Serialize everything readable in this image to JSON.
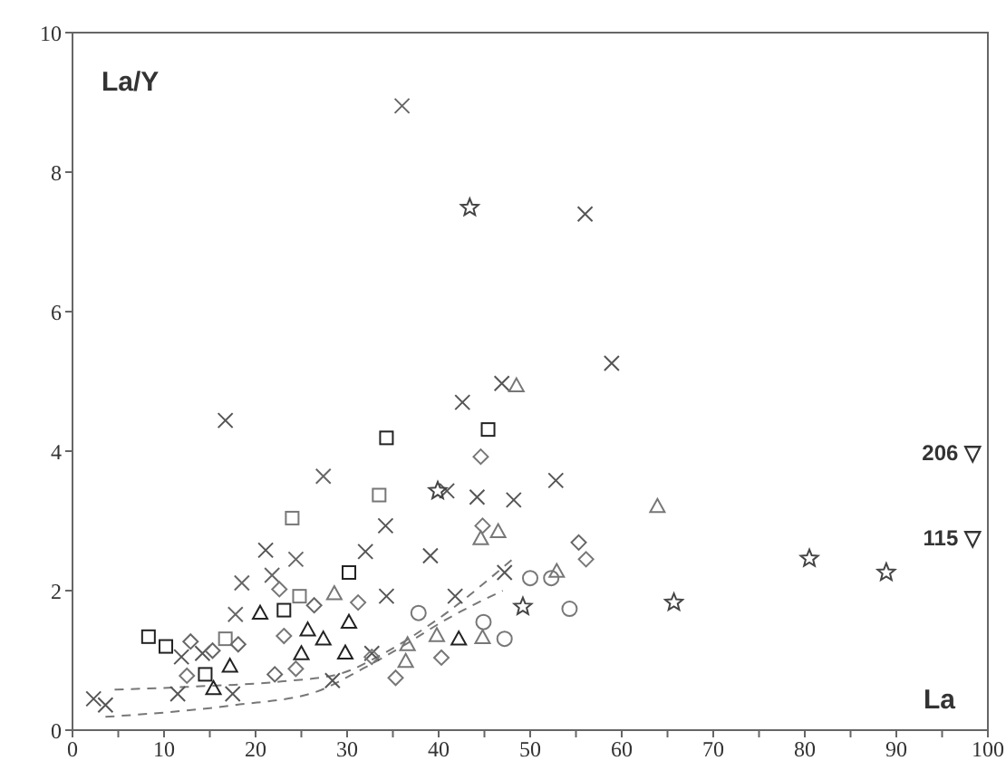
{
  "chart_data": {
    "type": "scatter",
    "xlabel": "La",
    "ylabel": "La/Y",
    "xlim": [
      0,
      100
    ],
    "ylim": [
      0,
      10
    ],
    "xticks": [
      0,
      {
        "value": 5,
        "label": null
      },
      10,
      {
        "value": 15,
        "label": null
      },
      20,
      {
        "value": 25,
        "label": null
      },
      30,
      {
        "value": 35,
        "label": null
      },
      40,
      {
        "value": 45,
        "label": null
      },
      50,
      {
        "value": 55,
        "label": null
      },
      60,
      {
        "value": 65,
        "label": null
      },
      70,
      {
        "value": 75,
        "label": null
      },
      80,
      {
        "value": 85,
        "label": null
      },
      90,
      {
        "value": 95,
        "label": null
      },
      100
    ],
    "yticks": [
      0,
      2,
      4,
      6,
      8,
      10
    ],
    "grid": false,
    "legend": false,
    "series": [
      {
        "marker": "cross",
        "color": "#555555",
        "x": [
          16.7,
          21.1,
          32.0,
          11.9,
          14.2,
          11.5,
          17.5,
          28.4,
          2.3,
          3.6,
          32.7,
          42.6,
          40.9,
          44.2,
          48.2,
          52.8,
          34.2,
          39.1,
          47.2,
          34.3,
          41.8,
          56.0,
          58.9,
          46.9
        ],
        "values": [
          4.44,
          2.58,
          2.56,
          1.05,
          1.1,
          0.52,
          0.52,
          0.71,
          0.45,
          0.36,
          1.1,
          4.7,
          3.43,
          3.34,
          3.3,
          3.58,
          2.93,
          2.5,
          2.26,
          1.92,
          1.92,
          7.4,
          5.26,
          4.97
        ]
      },
      {
        "marker": "cross",
        "color": "#666666",
        "x": [
          18.5,
          21.8,
          17.8,
          27.4,
          24.4,
          36.0
        ],
        "values": [
          2.11,
          2.22,
          1.66,
          3.64,
          2.45,
          8.95
        ]
      },
      {
        "marker": "square",
        "color": "#222222",
        "x": [
          30.2,
          23.1,
          8.3,
          10.2,
          14.5,
          34.3,
          45.4
        ],
        "values": [
          2.26,
          1.72,
          1.34,
          1.2,
          0.8,
          4.19,
          4.31
        ]
      },
      {
        "marker": "square",
        "color": "#777777",
        "x": [
          24.0,
          24.8,
          16.7,
          33.5
        ],
        "values": [
          3.04,
          1.92,
          1.31,
          3.37
        ]
      },
      {
        "marker": "triangle",
        "color": "#222222",
        "x": [
          20.5,
          25.7,
          27.4,
          30.2,
          25.0,
          29.8,
          17.2,
          15.4,
          42.2
        ],
        "values": [
          1.68,
          1.44,
          1.31,
          1.55,
          1.1,
          1.11,
          0.92,
          0.6,
          1.31
        ]
      },
      {
        "marker": "diamond",
        "color": "#777777",
        "x": [
          22.6,
          31.2,
          23.1,
          24.4,
          12.5,
          44.6,
          44.8,
          56.1,
          40.3,
          35.3,
          32.7
        ],
        "values": [
          2.02,
          1.83,
          1.35,
          0.88,
          0.78,
          3.92,
          2.93,
          2.45,
          1.04,
          0.75,
          1.05
        ]
      },
      {
        "marker": "circle",
        "color": "#777777",
        "x": [
          50.0,
          52.3,
          37.8,
          54.3,
          44.9,
          47.2
        ],
        "values": [
          2.18,
          2.18,
          1.68,
          1.74,
          1.55,
          1.31
        ]
      },
      {
        "marker": "star",
        "color": "#444444",
        "x": [
          43.4,
          39.9,
          49.2,
          65.7,
          80.5,
          88.9
        ],
        "values": [
          7.49,
          3.43,
          1.77,
          1.83,
          2.46,
          2.26
        ]
      },
      {
        "marker": "diamond",
        "color": "#666666",
        "x": [
          26.4,
          12.9,
          15.3,
          18.1,
          22.1,
          55.3
        ],
        "values": [
          1.79,
          1.27,
          1.14,
          1.23,
          0.8,
          2.69
        ]
      },
      {
        "marker": "triangle",
        "color": "#777777",
        "x": [
          28.6,
          63.9,
          44.6,
          46.5,
          52.9,
          39.8,
          44.8,
          36.6,
          36.4,
          48.5
        ],
        "values": [
          1.96,
          3.21,
          2.75,
          2.85,
          2.28,
          1.36,
          1.33,
          1.23,
          0.99,
          4.94
        ]
      },
      {
        "type": "line",
        "line_style": "dashed",
        "marker": "none",
        "color": "#777777",
        "x": [
          4.6,
          12.5,
          23,
          29,
          34,
          40,
          48.5
        ],
        "values": [
          0.58,
          0.62,
          0.7,
          0.8,
          1.1,
          1.6,
          2.5
        ]
      },
      {
        "type": "line",
        "line_style": "dashed",
        "marker": "none",
        "color": "#777777",
        "x": [
          3.6,
          17.8,
          26.4,
          31.7,
          36,
          41,
          47
        ],
        "values": [
          0.19,
          0.36,
          0.54,
          0.88,
          1.2,
          1.6,
          2.0
        ]
      }
    ],
    "annotations": [
      "206 ▽",
      "115 ▽"
    ]
  }
}
